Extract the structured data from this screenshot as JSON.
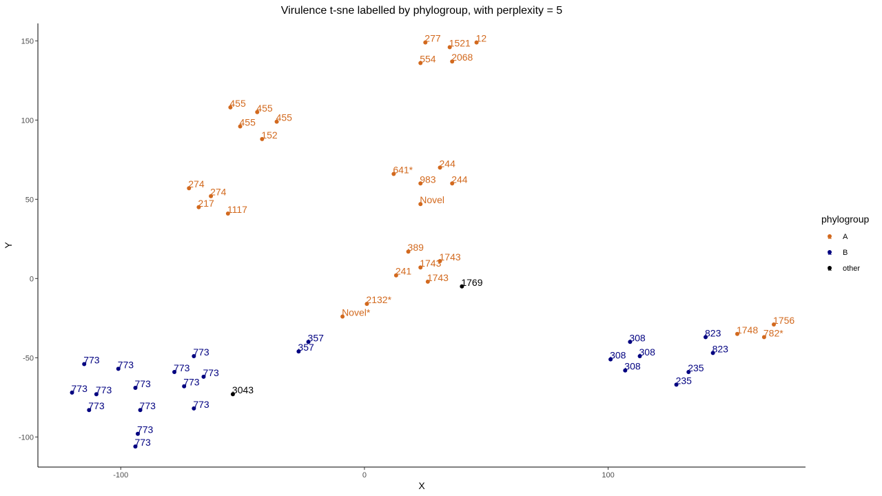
{
  "chart_data": {
    "type": "scatter",
    "title": "Virulence t-sne labelled by phylogroup, with perplexity = 5",
    "xlabel": "X",
    "ylabel": "Y",
    "xlim": [
      -134,
      181
    ],
    "ylim": [
      -119,
      161
    ],
    "xticks": [
      -100,
      0,
      100
    ],
    "yticks": [
      -100,
      -50,
      0,
      50,
      100,
      150
    ],
    "grid": false,
    "legend": {
      "title": "phylogroup",
      "position": "right"
    },
    "colors": {
      "A": "#D2691E",
      "B": "#000080",
      "other": "#000000"
    },
    "series": [
      {
        "name": "A",
        "points": [
          {
            "x": 25,
            "y": 149,
            "label": "277"
          },
          {
            "x": 35,
            "y": 146,
            "label": "1521"
          },
          {
            "x": 46,
            "y": 149,
            "label": "12"
          },
          {
            "x": 23,
            "y": 136,
            "label": "554"
          },
          {
            "x": 36,
            "y": 137,
            "label": "2068"
          },
          {
            "x": -55,
            "y": 108,
            "label": "455"
          },
          {
            "x": -44,
            "y": 105,
            "label": "455"
          },
          {
            "x": -36,
            "y": 99,
            "label": "455"
          },
          {
            "x": -51,
            "y": 96,
            "label": "455"
          },
          {
            "x": -42,
            "y": 88,
            "label": "152"
          },
          {
            "x": 12,
            "y": 66,
            "label": "641*"
          },
          {
            "x": 31,
            "y": 70,
            "label": "244"
          },
          {
            "x": 23,
            "y": 60,
            "label": "983"
          },
          {
            "x": 36,
            "y": 60,
            "label": "244"
          },
          {
            "x": 23,
            "y": 47,
            "label": "Novel"
          },
          {
            "x": -72,
            "y": 57,
            "label": "274"
          },
          {
            "x": -63,
            "y": 52,
            "label": "274"
          },
          {
            "x": -68,
            "y": 45,
            "label": "217"
          },
          {
            "x": -56,
            "y": 41,
            "label": "1117"
          },
          {
            "x": 18,
            "y": 17,
            "label": "389"
          },
          {
            "x": 31,
            "y": 11,
            "label": "1743"
          },
          {
            "x": 23,
            "y": 7,
            "label": "1743"
          },
          {
            "x": 13,
            "y": 2,
            "label": "241"
          },
          {
            "x": 26,
            "y": -2,
            "label": "1743"
          },
          {
            "x": 1,
            "y": -16,
            "label": "2132*"
          },
          {
            "x": -9,
            "y": -24,
            "label": "Novel*"
          },
          {
            "x": 168,
            "y": -29,
            "label": "1756"
          },
          {
            "x": 153,
            "y": -35,
            "label": "1748"
          },
          {
            "x": 164,
            "y": -37,
            "label": "782*"
          }
        ]
      },
      {
        "name": "B",
        "points": [
          {
            "x": -23,
            "y": -40,
            "label": "357"
          },
          {
            "x": -27,
            "y": -46,
            "label": "357"
          },
          {
            "x": -70,
            "y": -49,
            "label": "773"
          },
          {
            "x": -115,
            "y": -54,
            "label": "773"
          },
          {
            "x": -101,
            "y": -57,
            "label": "773"
          },
          {
            "x": -78,
            "y": -59,
            "label": "773"
          },
          {
            "x": -66,
            "y": -62,
            "label": "773"
          },
          {
            "x": -74,
            "y": -68,
            "label": "773"
          },
          {
            "x": -94,
            "y": -69,
            "label": "773"
          },
          {
            "x": -120,
            "y": -72,
            "label": "773"
          },
          {
            "x": -110,
            "y": -73,
            "label": "773"
          },
          {
            "x": -113,
            "y": -83,
            "label": "773"
          },
          {
            "x": -92,
            "y": -83,
            "label": "773"
          },
          {
            "x": -70,
            "y": -82,
            "label": "773"
          },
          {
            "x": -93,
            "y": -98,
            "label": "773"
          },
          {
            "x": -94,
            "y": -106,
            "label": "773"
          },
          {
            "x": 109,
            "y": -40,
            "label": "308"
          },
          {
            "x": 113,
            "y": -49,
            "label": "308"
          },
          {
            "x": 101,
            "y": -51,
            "label": "308"
          },
          {
            "x": 107,
            "y": -58,
            "label": "308"
          },
          {
            "x": 140,
            "y": -37,
            "label": "823"
          },
          {
            "x": 143,
            "y": -47,
            "label": "823"
          },
          {
            "x": 133,
            "y": -59,
            "label": "235"
          },
          {
            "x": 128,
            "y": -67,
            "label": "235"
          }
        ]
      },
      {
        "name": "other",
        "points": [
          {
            "x": 40,
            "y": -5,
            "label": "1769"
          },
          {
            "x": -54,
            "y": -73,
            "label": "3043"
          }
        ]
      }
    ]
  }
}
